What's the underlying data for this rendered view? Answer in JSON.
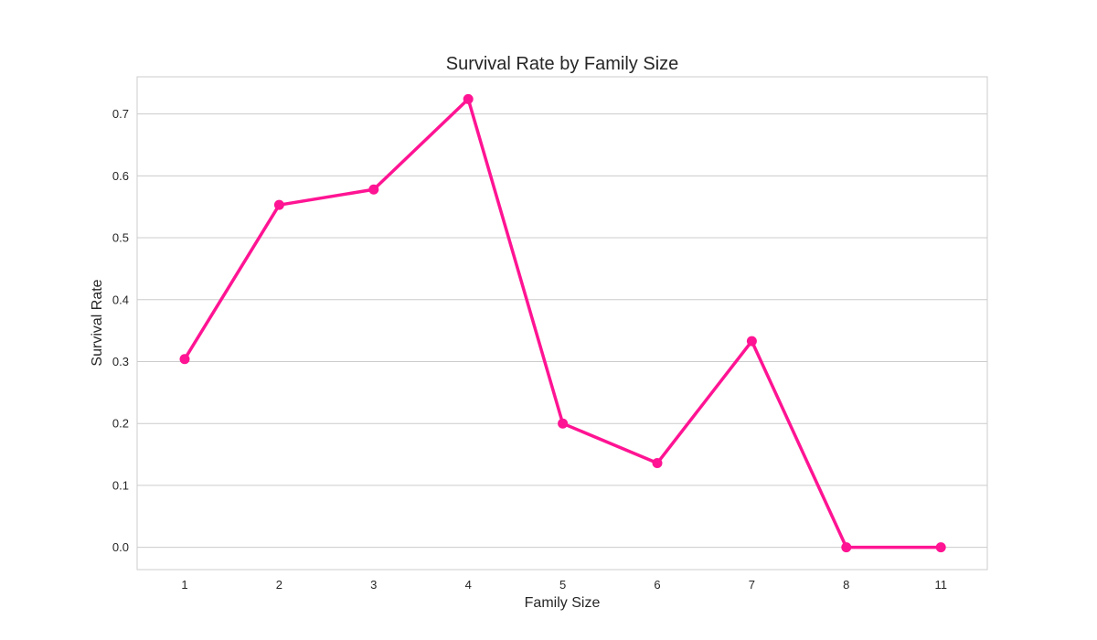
{
  "chart_data": {
    "type": "line",
    "title": "Survival Rate by Family Size",
    "xlabel": "Family Size",
    "ylabel": "Survival Rate",
    "categories": [
      "1",
      "2",
      "3",
      "4",
      "5",
      "6",
      "7",
      "8",
      "11"
    ],
    "series": [
      {
        "values": [
          0.304,
          0.553,
          0.578,
          0.724,
          0.2,
          0.136,
          0.333,
          0.0,
          0.0
        ]
      }
    ],
    "yticks": [
      0.0,
      0.1,
      0.2,
      0.3,
      0.4,
      0.5,
      0.6,
      0.7
    ],
    "ytick_labels": [
      "0.0",
      "0.1",
      "0.2",
      "0.3",
      "0.4",
      "0.5",
      "0.6",
      "0.7"
    ],
    "ylim": [
      -0.036,
      0.76
    ],
    "grid": "horizontal",
    "colors": {
      "line": "#ff1493",
      "grid": "#cccccc",
      "text": "#262626"
    }
  }
}
